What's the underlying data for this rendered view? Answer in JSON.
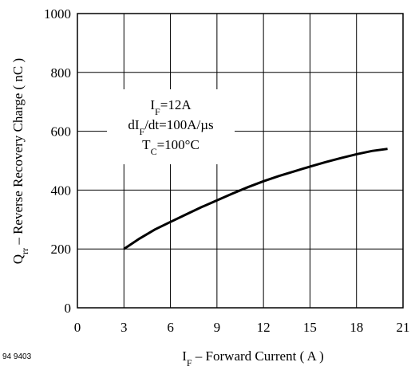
{
  "figure_number": "94 9403",
  "chart_data": {
    "type": "line",
    "title": "",
    "xlabel": {
      "main": "I",
      "sub": "F",
      "rest": " – Forward Current ( A )"
    },
    "ylabel": {
      "main": "Q",
      "sub": "rr",
      "rest": " – Reverse Recovery Charge ( nC )"
    },
    "xlim": [
      0,
      21
    ],
    "ylim": [
      0,
      1000
    ],
    "x_ticks": [
      0,
      3,
      6,
      9,
      12,
      15,
      18,
      21
    ],
    "y_ticks": [
      0,
      200,
      400,
      600,
      800,
      1000
    ],
    "grid": true,
    "annotations": [
      {
        "main": "I",
        "sub": "F",
        "rest": "=12A"
      },
      {
        "main": "dI",
        "sub": "F",
        "rest": "/dt=100A/µs"
      },
      {
        "main": "T",
        "sub": "C",
        "rest": "=100°C"
      }
    ],
    "series": [
      {
        "color": "#000000",
        "x": [
          3,
          4,
          5,
          6,
          7,
          8,
          9,
          10,
          11,
          12,
          13,
          14,
          15,
          16,
          17,
          18,
          19,
          20
        ],
        "y": [
          200,
          235,
          266,
          292,
          317,
          342,
          365,
          388,
          410,
          430,
          448,
          464,
          480,
          495,
          509,
          522,
          533,
          540
        ]
      }
    ]
  }
}
